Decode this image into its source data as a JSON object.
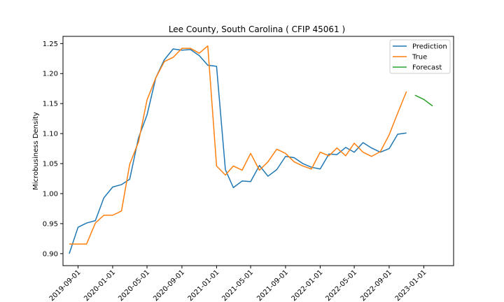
{
  "chart_data": {
    "type": "line",
    "title": "Lee County, South Carolina ( CFIP 45061 )",
    "ylabel": "Microbusiness Density",
    "xlabel": "",
    "ylim": [
      0.88,
      1.262
    ],
    "x_date_range": [
      "2019-07-10",
      "2023-04-16"
    ],
    "yticks": [
      0.9,
      0.95,
      1.0,
      1.05,
      1.1,
      1.15,
      1.2,
      1.25
    ],
    "xticks": [
      "2019-09-01",
      "2020-01-01",
      "2020-05-01",
      "2020-09-01",
      "2021-01-01",
      "2021-05-01",
      "2021-09-01",
      "2022-01-01",
      "2022-05-01",
      "2022-09-01",
      "2023-01-01"
    ],
    "legend_position": "top-right",
    "grid": false,
    "series": [
      {
        "name": "Prediction",
        "color": "#1f77b4",
        "x": [
          "2019-08-01",
          "2019-09-01",
          "2019-10-01",
          "2019-11-01",
          "2019-12-01",
          "2020-01-01",
          "2020-02-01",
          "2020-03-01",
          "2020-04-01",
          "2020-05-01",
          "2020-06-01",
          "2020-07-01",
          "2020-08-01",
          "2020-09-01",
          "2020-10-01",
          "2020-11-01",
          "2020-12-01",
          "2021-01-01",
          "2021-02-01",
          "2021-03-01",
          "2021-04-01",
          "2021-05-01",
          "2021-06-01",
          "2021-07-01",
          "2021-08-01",
          "2021-09-01",
          "2021-10-01",
          "2021-11-01",
          "2021-12-01",
          "2022-01-01",
          "2022-02-01",
          "2022-03-01",
          "2022-04-01",
          "2022-05-01",
          "2022-06-01",
          "2022-07-01",
          "2022-08-01",
          "2022-09-01",
          "2022-10-01",
          "2022-11-01"
        ],
        "values": [
          0.9,
          0.944,
          0.951,
          0.955,
          0.993,
          1.011,
          1.015,
          1.024,
          1.093,
          1.131,
          1.193,
          1.223,
          1.241,
          1.239,
          1.24,
          1.23,
          1.214,
          1.212,
          1.04,
          1.01,
          1.021,
          1.02,
          1.047,
          1.029,
          1.04,
          1.062,
          1.06,
          1.05,
          1.044,
          1.041,
          1.066,
          1.065,
          1.077,
          1.069,
          1.085,
          1.076,
          1.069,
          1.075,
          1.099,
          1.101
        ]
      },
      {
        "name": "True",
        "color": "#ff7f0e",
        "x": [
          "2019-08-01",
          "2019-09-01",
          "2019-10-01",
          "2019-11-01",
          "2019-12-01",
          "2020-01-01",
          "2020-02-01",
          "2020-03-01",
          "2020-04-01",
          "2020-05-01",
          "2020-06-01",
          "2020-07-01",
          "2020-08-01",
          "2020-09-01",
          "2020-10-01",
          "2020-11-01",
          "2020-12-01",
          "2021-01-01",
          "2021-02-01",
          "2021-03-01",
          "2021-04-01",
          "2021-05-01",
          "2021-06-01",
          "2021-07-01",
          "2021-08-01",
          "2021-09-01",
          "2021-10-01",
          "2021-11-01",
          "2021-12-01",
          "2022-01-01",
          "2022-02-01",
          "2022-03-01",
          "2022-04-01",
          "2022-05-01",
          "2022-06-01",
          "2022-07-01",
          "2022-08-01",
          "2022-09-01",
          "2022-10-01",
          "2022-11-01"
        ],
        "values": [
          0.916,
          0.916,
          0.916,
          0.951,
          0.964,
          0.964,
          0.971,
          1.049,
          1.086,
          1.156,
          1.193,
          1.22,
          1.227,
          1.242,
          1.242,
          1.234,
          1.246,
          1.046,
          1.031,
          1.046,
          1.039,
          1.067,
          1.039,
          1.053,
          1.074,
          1.067,
          1.053,
          1.046,
          1.041,
          1.069,
          1.063,
          1.076,
          1.063,
          1.084,
          1.069,
          1.062,
          1.07,
          1.098,
          1.134,
          1.17
        ]
      },
      {
        "name": "Forecast",
        "color": "#2ca02c",
        "x": [
          "2022-12-01",
          "2023-01-01",
          "2023-02-01"
        ],
        "values": [
          1.164,
          1.157,
          1.146
        ]
      }
    ]
  }
}
